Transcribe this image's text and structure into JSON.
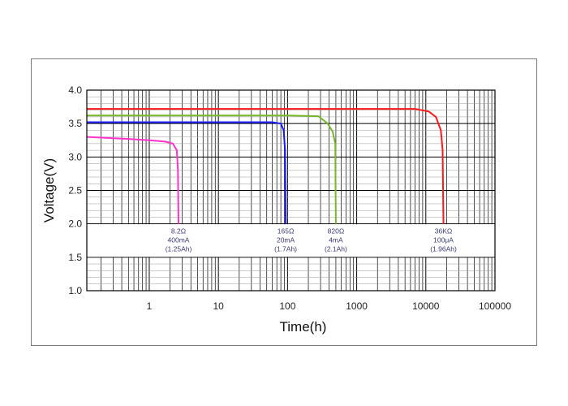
{
  "chart_data": {
    "type": "line",
    "xlabel": "Time(h)",
    "ylabel": "Voltage(V)",
    "xscale": "log",
    "xlim": [
      0.125,
      100000
    ],
    "ylim": [
      1.0,
      4.0
    ],
    "grid": true,
    "x_tick_labels": [
      "1",
      "10",
      "100",
      "1000",
      "10000",
      "100000"
    ],
    "y_tick_labels": [
      "1.0",
      "1.5",
      "2.0",
      "2.5",
      "3.0",
      "3.5",
      "4.0"
    ],
    "series": [
      {
        "color": "#ff33cc",
        "points": [
          [
            0.125,
            3.3
          ],
          [
            0.5,
            3.27
          ],
          [
            1.0,
            3.25
          ],
          [
            1.7,
            3.23
          ],
          [
            2.2,
            3.2
          ],
          [
            2.5,
            3.1
          ],
          [
            2.6,
            2.8
          ],
          [
            2.65,
            2.0
          ]
        ],
        "label_lines": [
          "8.2Ω",
          "400mA",
          "(1.25Ah)"
        ]
      },
      {
        "color": "#1a1aff",
        "points": [
          [
            0.125,
            3.52
          ],
          [
            10,
            3.52
          ],
          [
            60,
            3.52
          ],
          [
            80,
            3.5
          ],
          [
            88,
            3.4
          ],
          [
            92,
            3.1
          ],
          [
            94,
            2.0
          ]
        ],
        "label_lines": [
          "165Ω",
          "20mA",
          "(1.7Ah)"
        ]
      },
      {
        "color": "#77b82a",
        "points": [
          [
            0.125,
            3.62
          ],
          [
            100,
            3.62
          ],
          [
            280,
            3.61
          ],
          [
            380,
            3.5
          ],
          [
            450,
            3.38
          ],
          [
            490,
            3.2
          ],
          [
            500,
            2.0
          ]
        ],
        "label_lines": [
          "820Ω",
          "4mA",
          "(2.1Ah)"
        ]
      },
      {
        "color": "#ff1a1a",
        "points": [
          [
            0.125,
            3.72
          ],
          [
            1000,
            3.72
          ],
          [
            7000,
            3.72
          ],
          [
            11000,
            3.68
          ],
          [
            14000,
            3.6
          ],
          [
            16500,
            3.4
          ],
          [
            17500,
            3.1
          ],
          [
            18000,
            2.0
          ]
        ],
        "label_lines": [
          "36KΩ",
          "100μA",
          "(1.96Ah)"
        ]
      }
    ]
  }
}
